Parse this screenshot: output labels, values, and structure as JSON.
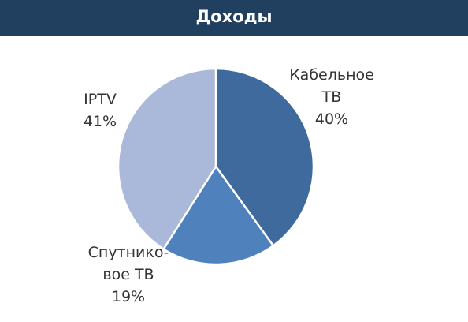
{
  "chart_data": {
    "type": "pie",
    "title": "Доходы",
    "categories": [
      "Кабельное\nТВ",
      "Спутнико-\nвое ТВ",
      "IPTV"
    ],
    "values": [
      40,
      19,
      41
    ],
    "value_labels": [
      "40%",
      "19%",
      "41%"
    ],
    "colors": [
      "#3e6a9e",
      "#4f81bd",
      "#aab9d9"
    ]
  }
}
